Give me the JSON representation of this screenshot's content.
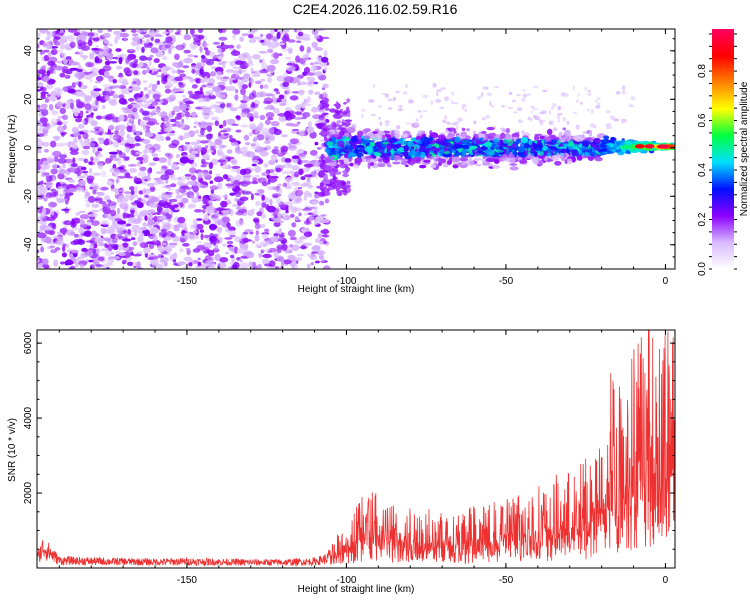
{
  "title": "C2E4.2026.116.02.59.R16",
  "colors": {
    "snr_line": "#ee3030",
    "axis": "#000000",
    "background": "#ffffff"
  },
  "chart_data": [
    {
      "type": "heatmap",
      "title": "C2E4.2026.116.02.59.R16",
      "xlabel": "Height of straight line (km)",
      "ylabel": "Frequency (Hz)",
      "xlim": [
        -197,
        3
      ],
      "ylim": [
        -50,
        49
      ],
      "xticks": [
        -150,
        -100,
        -50,
        0
      ],
      "yticks": [
        -40,
        -20,
        0,
        20,
        40
      ],
      "colorbar": {
        "label": "Normalized spectral amplitude",
        "range": [
          0,
          0.97
        ],
        "ticks": [
          0,
          0.2,
          0.4,
          0.6,
          0.8
        ],
        "tick_labels": [
          "0.0",
          "0.2",
          "0.4",
          "0.6",
          "0.8"
        ],
        "colormap": [
          "#ffffff",
          "#d8b8ff",
          "#8a00ff",
          "#0010ff",
          "#00e0ff",
          "#00ff40",
          "#ffff00",
          "#ff8000",
          "#ff0000",
          "#ff0060"
        ]
      },
      "regions": [
        {
          "x_range": [
            -197,
            -106
          ],
          "freq_range": [
            -50,
            49
          ],
          "amplitude": 0.1,
          "description_of_pattern": "broadband scatter"
        },
        {
          "x_range": [
            -106,
            -20
          ],
          "freq_center": 0,
          "freq_halfwidth": [
            12,
            8
          ],
          "amplitude": 0.25
        },
        {
          "x_range": [
            -20,
            3
          ],
          "freq_center": 0.5,
          "freq_halfwidth": [
            4,
            1
          ],
          "amplitude": 0.95
        }
      ],
      "grid": false
    },
    {
      "type": "line",
      "xlabel": "Height of straight line (km)",
      "ylabel": "SNR (10 * v/v)",
      "xlim": [
        -197,
        3
      ],
      "ylim": [
        0,
        6350
      ],
      "xticks": [
        -150,
        -100,
        -50,
        0
      ],
      "yticks": [
        2000,
        4000,
        6000
      ],
      "series": [
        {
          "x": [
            -197,
            -195,
            -190,
            -180,
            -170,
            -160,
            -150,
            -140,
            -130,
            -120,
            -110,
            -106,
            -103,
            -100,
            -97,
            -95,
            -90,
            -85,
            -80,
            -75,
            -70,
            -65,
            -60,
            -55,
            -50,
            -45,
            -40,
            -35,
            -30,
            -25,
            -20,
            -17,
            -15,
            -12,
            -10,
            -8,
            -5,
            -3,
            0,
            3
          ],
          "y": [
            250,
            550,
            200,
            180,
            170,
            160,
            170,
            160,
            150,
            150,
            170,
            250,
            700,
            1100,
            1300,
            1800,
            1500,
            1400,
            1300,
            1200,
            1300,
            1200,
            1300,
            1300,
            1500,
            1600,
            1700,
            1900,
            2000,
            2300,
            2600,
            4500,
            3800,
            4200,
            4800,
            5200,
            5500,
            5000,
            5200,
            5400
          ]
        }
      ],
      "grid": false
    }
  ]
}
